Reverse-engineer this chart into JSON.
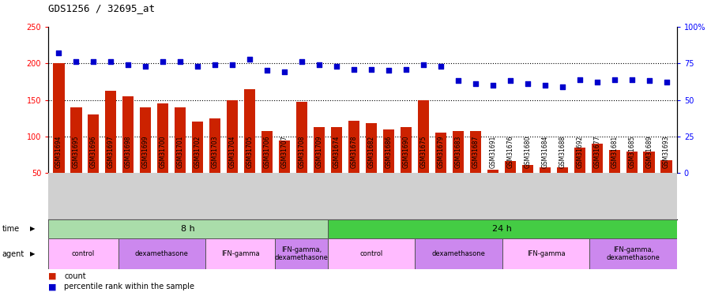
{
  "title": "GDS1256 / 32695_at",
  "samples": [
    "GSM31694",
    "GSM31695",
    "GSM31696",
    "GSM31697",
    "GSM31698",
    "GSM31699",
    "GSM31700",
    "GSM31701",
    "GSM31702",
    "GSM31703",
    "GSM31704",
    "GSM31705",
    "GSM31706",
    "GSM31707",
    "GSM31708",
    "GSM31709",
    "GSM31674",
    "GSM31678",
    "GSM31682",
    "GSM31686",
    "GSM31690",
    "GSM31675",
    "GSM31679",
    "GSM31683",
    "GSM31687",
    "GSM31691",
    "GSM31676",
    "GSM31680",
    "GSM31684",
    "GSM31688",
    "GSM31692",
    "GSM31677",
    "GSM31681",
    "GSM31685",
    "GSM31689",
    "GSM31693"
  ],
  "counts": [
    200,
    140,
    130,
    162,
    155,
    140,
    145,
    140,
    120,
    125,
    150,
    165,
    108,
    95,
    147,
    113,
    113,
    122,
    118,
    110,
    113,
    150,
    105,
    108,
    108,
    55,
    67,
    61,
    58,
    58,
    85,
    90,
    82,
    80,
    80,
    68
  ],
  "percentile": [
    82,
    76,
    76,
    76,
    74,
    73,
    76,
    76,
    73,
    74,
    74,
    78,
    70,
    69,
    76,
    74,
    73,
    71,
    71,
    70,
    71,
    74,
    73,
    63,
    61,
    60,
    63,
    61,
    60,
    59,
    64,
    62,
    64,
    64,
    63,
    62
  ],
  "ylim_left": [
    50,
    250
  ],
  "ylim_right": [
    0,
    100
  ],
  "yticks_left": [
    50,
    100,
    150,
    200,
    250
  ],
  "yticks_right": [
    0,
    25,
    50,
    75,
    100
  ],
  "ytick_labels_right": [
    "0",
    "25",
    "50",
    "75",
    "100%"
  ],
  "bar_color": "#cc2200",
  "dot_color": "#0000cc",
  "grid_yticks": [
    100,
    150,
    200
  ],
  "xtick_bg_color": "#d0d0d0",
  "time_groups": [
    {
      "label": "8 h",
      "start": 0,
      "end": 16,
      "color": "#aaddaa"
    },
    {
      "label": "24 h",
      "start": 16,
      "end": 36,
      "color": "#44cc44"
    }
  ],
  "agent_groups": [
    {
      "label": "control",
      "start": 0,
      "end": 4,
      "color": "#ffbbff"
    },
    {
      "label": "dexamethasone",
      "start": 4,
      "end": 9,
      "color": "#cc88ee"
    },
    {
      "label": "IFN-gamma",
      "start": 9,
      "end": 13,
      "color": "#ffbbff"
    },
    {
      "label": "IFN-gamma,\ndexamethasone",
      "start": 13,
      "end": 16,
      "color": "#cc88ee"
    },
    {
      "label": "control",
      "start": 16,
      "end": 21,
      "color": "#ffbbff"
    },
    {
      "label": "dexamethasone",
      "start": 21,
      "end": 26,
      "color": "#cc88ee"
    },
    {
      "label": "IFN-gamma",
      "start": 26,
      "end": 31,
      "color": "#ffbbff"
    },
    {
      "label": "IFN-gamma,\ndexamethasone",
      "start": 31,
      "end": 36,
      "color": "#cc88ee"
    }
  ]
}
